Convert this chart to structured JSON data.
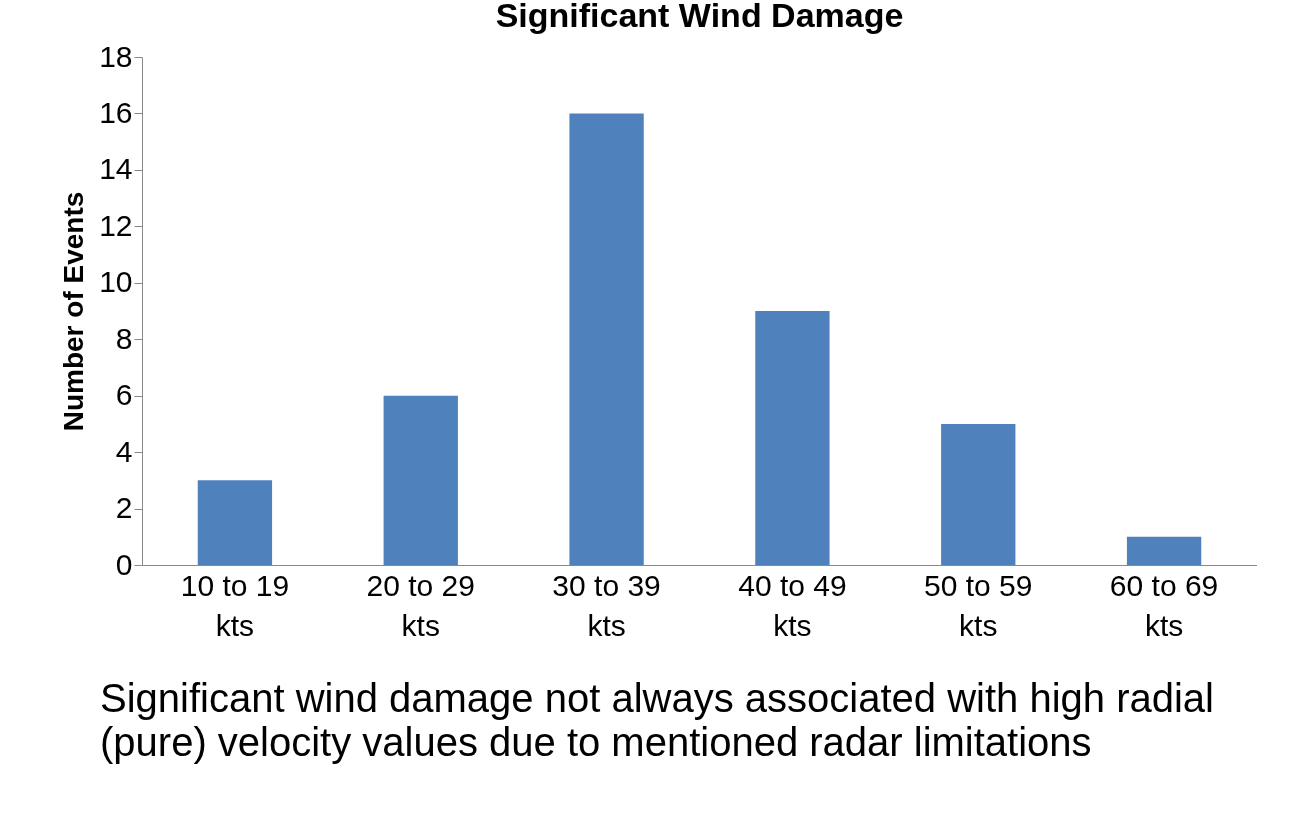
{
  "chart_data": {
    "type": "bar",
    "title": "Significant Wind Damage",
    "ylabel": "Number of Events",
    "categories": [
      "10 to 19 kts",
      "20 to 29 kts",
      "30 to 39 kts",
      "40 to 49 kts",
      "50 to 59 kts",
      "60 to 69 kts"
    ],
    "values": [
      3,
      6,
      16,
      9,
      5,
      1
    ],
    "color": "#4f81bd",
    "ylim": [
      0,
      18
    ],
    "yticks": [
      0,
      2,
      4,
      6,
      8,
      10,
      12,
      14,
      16,
      18
    ],
    "grid": false,
    "annotations": [
      "Significant wind damage not always associated with high radial (pure) velocity values due to mentioned radar limitations"
    ]
  }
}
